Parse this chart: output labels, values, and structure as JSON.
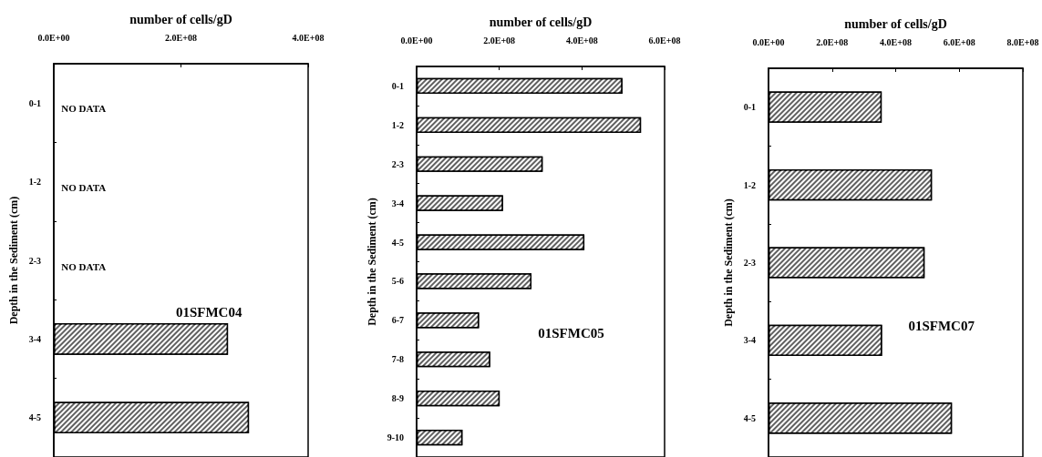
{
  "chart_data": [
    {
      "type": "bar",
      "orientation": "horizontal",
      "xlabel": "number of cells/gD",
      "ylabel": "Depth in the Sediment (cm)",
      "categories": [
        "0-1",
        "1-2",
        "2-3",
        "3-4",
        "4-5"
      ],
      "series": [
        {
          "color": "#606060",
          "values": [
            null,
            null,
            null,
            274000000,
            307000000
          ]
        }
      ],
      "xlim": [
        0,
        400000000
      ],
      "xticks": [
        {
          "value": 0,
          "label": "0.0E+00"
        },
        {
          "value": 200000000,
          "label": "2.0E+08"
        },
        {
          "value": 400000000,
          "label": "4.0E+08"
        }
      ],
      "annotations": [
        "NO DATA",
        "NO DATA",
        "NO DATA",
        "01SFMC04"
      ],
      "grid": false
    },
    {
      "type": "bar",
      "orientation": "horizontal",
      "xlabel": "number of cells/gD",
      "ylabel": "Depth in the Sediment (cm)",
      "categories": [
        "0-1",
        "1-2",
        "2-3",
        "3-4",
        "4-5",
        "5-6",
        "6-7",
        "7-8",
        "8-9",
        "9-10"
      ],
      "series": [
        {
          "color": "#606060",
          "values": [
            498000000,
            543000000,
            305000000,
            209000000,
            406000000,
            278000000,
            151000000,
            178000000,
            201000000,
            111000000
          ]
        }
      ],
      "xlim": [
        0,
        600000000
      ],
      "xticks": [
        {
          "value": 0,
          "label": "0.0E+00"
        },
        {
          "value": 200000000,
          "label": "2.0E+08"
        },
        {
          "value": 400000000,
          "label": "4.0E+08"
        },
        {
          "value": 600000000,
          "label": "6.0E+08"
        }
      ],
      "annotations": [
        "01SFMC05"
      ],
      "grid": false
    },
    {
      "type": "bar",
      "orientation": "horizontal",
      "xlabel": "number of cells/gD",
      "ylabel": "Depth in the Sediment (cm)",
      "categories": [
        "0-1",
        "1-2",
        "2-3",
        "3-4",
        "4-5"
      ],
      "series": [
        {
          "color": "#606060",
          "values": [
            356000000,
            514000000,
            491000000,
            357000000,
            577000000
          ]
        }
      ],
      "xlim": [
        0,
        800000000
      ],
      "xticks": [
        {
          "value": 0,
          "label": "0.0E+00"
        },
        {
          "value": 200000000,
          "label": "2.0E+08"
        },
        {
          "value": 400000000,
          "label": "4.0E+08"
        },
        {
          "value": 600000000,
          "label": "6.0E+08"
        },
        {
          "value": 800000000,
          "label": "8.0E+08"
        }
      ],
      "annotations": [
        "01SFMC07"
      ],
      "grid": false
    }
  ]
}
